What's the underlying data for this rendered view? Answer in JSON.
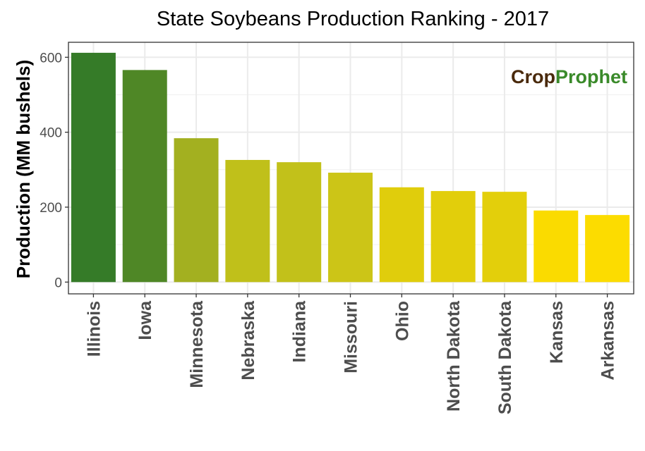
{
  "chart_data": {
    "type": "bar",
    "title": "State Soybeans Production Ranking - 2017",
    "xlabel": "",
    "ylabel": "Production (MM bushels)",
    "ylim": [
      0,
      640
    ],
    "yticks": [
      0,
      200,
      400,
      600
    ],
    "grid": true,
    "legend": "none",
    "categories": [
      "Illinois",
      "Iowa",
      "Minnesota",
      "Nebraska",
      "Indiana",
      "Missouri",
      "Ohio",
      "North Dakota",
      "South Dakota",
      "Kansas",
      "Arkansas"
    ],
    "values": [
      612,
      566,
      384,
      326,
      320,
      292,
      253,
      243,
      241,
      191,
      179
    ],
    "colors": [
      "#357b28",
      "#4f8726",
      "#a3b020",
      "#c0c01a",
      "#c2c11a",
      "#ccc517",
      "#e0cd0c",
      "#e2ce0b",
      "#e3cf0b",
      "#fadb00",
      "#fcdc00"
    ]
  },
  "logo": {
    "part1": "Crop",
    "part2": "Prophet",
    "color1": "#4a2a0c",
    "color2": "#3a8a2a"
  }
}
